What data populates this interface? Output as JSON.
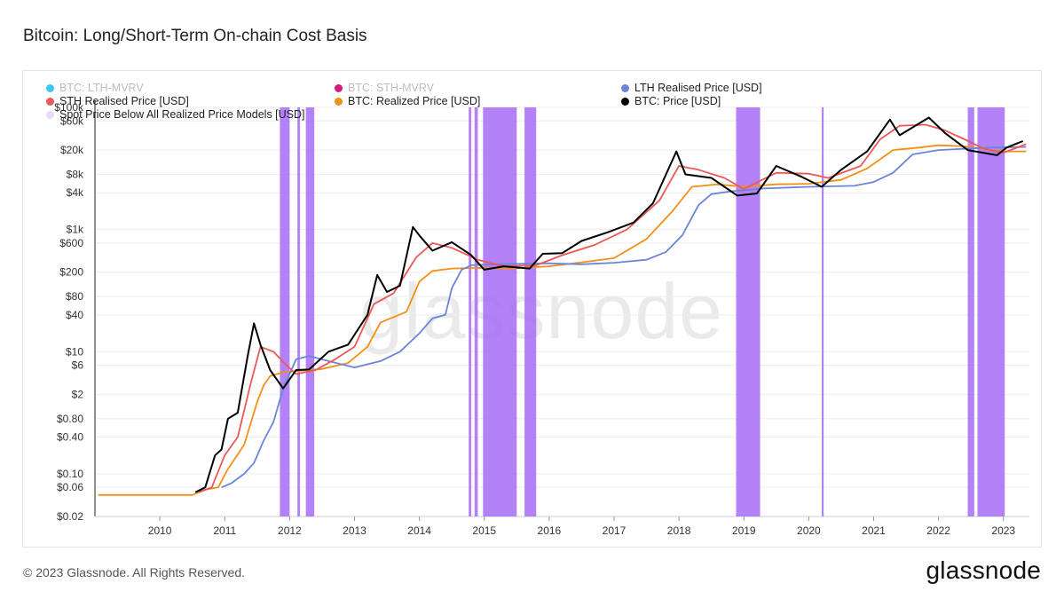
{
  "title": "Bitcoin: Long/Short-Term On-chain Cost Basis",
  "footer": "© 2023 Glassnode. All Rights Reserved.",
  "logo": "glassnode",
  "watermark": "glassnode",
  "legend": [
    {
      "label": "BTC: LTH-MVRV",
      "color": "#3fc6f0",
      "dim": true
    },
    {
      "label": "BTC: STH-MVRV",
      "color": "#d6187f",
      "dim": true
    },
    {
      "label": "LTH Realised Price [USD]",
      "color": "#6b85d8",
      "dim": false
    },
    {
      "label": "STH Realised Price [USD]",
      "color": "#ee5757",
      "dim": false
    },
    {
      "label": "BTC: Realized Price [USD]",
      "color": "#f29015",
      "dim": false
    },
    {
      "label": "BTC: Price [USD]",
      "color": "#000000",
      "dim": false
    },
    {
      "label": "Spot Price Below All Realized Price Models [USD]",
      "color": "#ead9ff",
      "dim": false
    }
  ],
  "chart_data": {
    "type": "line",
    "title": "Bitcoin: Long/Short-Term On-chain Cost Basis",
    "y_scale": "log",
    "ylim": [
      0.02,
      100000
    ],
    "xlim": [
      2009.0,
      2023.4
    ],
    "y_ticks": [
      {
        "v": 100000,
        "label": "$100k"
      },
      {
        "v": 60000,
        "label": "$60k"
      },
      {
        "v": 20000,
        "label": "$20k"
      },
      {
        "v": 8000,
        "label": "$8k"
      },
      {
        "v": 4000,
        "label": "$4k"
      },
      {
        "v": 1000,
        "label": "$1k"
      },
      {
        "v": 600,
        "label": "$600"
      },
      {
        "v": 200,
        "label": "$200"
      },
      {
        "v": 80,
        "label": "$80"
      },
      {
        "v": 40,
        "label": "$40"
      },
      {
        "v": 10,
        "label": "$10"
      },
      {
        "v": 6,
        "label": "$6"
      },
      {
        "v": 2,
        "label": "$2"
      },
      {
        "v": 0.8,
        "label": "$0.80"
      },
      {
        "v": 0.4,
        "label": "$0.40"
      },
      {
        "v": 0.1,
        "label": "$0.10"
      },
      {
        "v": 0.06,
        "label": "$0.06"
      },
      {
        "v": 0.02,
        "label": "$0.02"
      }
    ],
    "x_ticks": [
      {
        "v": 2010,
        "label": "2010"
      },
      {
        "v": 2011,
        "label": "2011"
      },
      {
        "v": 2012,
        "label": "2012"
      },
      {
        "v": 2013,
        "label": "2013"
      },
      {
        "v": 2014,
        "label": "2014"
      },
      {
        "v": 2015,
        "label": "2015"
      },
      {
        "v": 2016,
        "label": "2016"
      },
      {
        "v": 2017,
        "label": "2017"
      },
      {
        "v": 2018,
        "label": "2018"
      },
      {
        "v": 2019,
        "label": "2019"
      },
      {
        "v": 2020,
        "label": "2020"
      },
      {
        "v": 2021,
        "label": "2021"
      },
      {
        "v": 2022,
        "label": "2022"
      },
      {
        "v": 2023,
        "label": "2023"
      }
    ],
    "shaded_periods": [
      [
        2011.85,
        2012.0
      ],
      [
        2012.12,
        2012.16
      ],
      [
        2012.25,
        2012.38
      ],
      [
        2014.76,
        2014.8
      ],
      [
        2014.85,
        2014.9
      ],
      [
        2014.98,
        2015.5
      ],
      [
        2015.62,
        2015.8
      ],
      [
        2018.88,
        2019.25
      ],
      [
        2020.2,
        2020.23
      ],
      [
        2022.45,
        2022.55
      ],
      [
        2022.6,
        2023.02
      ]
    ],
    "series": [
      {
        "name": "BTC: Realized Price [USD]",
        "color": "#f29015",
        "points": [
          [
            2009.05,
            0.045
          ],
          [
            2010.5,
            0.045
          ],
          [
            2010.7,
            0.055
          ],
          [
            2010.9,
            0.06
          ],
          [
            2011.05,
            0.12
          ],
          [
            2011.3,
            0.3
          ],
          [
            2011.5,
            1.5
          ],
          [
            2011.6,
            2.8
          ],
          [
            2011.7,
            4
          ],
          [
            2011.9,
            4.6
          ],
          [
            2012.2,
            4.9
          ],
          [
            2012.5,
            5.2
          ],
          [
            2012.9,
            6.5
          ],
          [
            2013.2,
            12
          ],
          [
            2013.4,
            30
          ],
          [
            2013.8,
            45
          ],
          [
            2014.0,
            140
          ],
          [
            2014.2,
            210
          ],
          [
            2014.5,
            230
          ],
          [
            2014.9,
            235
          ],
          [
            2015.4,
            230
          ],
          [
            2016.0,
            250
          ],
          [
            2016.5,
            290
          ],
          [
            2017.0,
            340
          ],
          [
            2017.5,
            700
          ],
          [
            2017.9,
            2000
          ],
          [
            2018.2,
            5000
          ],
          [
            2018.6,
            5500
          ],
          [
            2019.0,
            5000
          ],
          [
            2019.5,
            5500
          ],
          [
            2020.0,
            5600
          ],
          [
            2020.5,
            6500
          ],
          [
            2020.9,
            10000
          ],
          [
            2021.3,
            20000
          ],
          [
            2021.7,
            22000
          ],
          [
            2022.0,
            24000
          ],
          [
            2022.4,
            23000
          ],
          [
            2022.8,
            20000
          ],
          [
            2023.0,
            19000
          ],
          [
            2023.35,
            19000
          ]
        ]
      },
      {
        "name": "LTH Realised Price [USD]",
        "color": "#6b85d8",
        "points": [
          [
            2010.95,
            0.06
          ],
          [
            2011.1,
            0.07
          ],
          [
            2011.3,
            0.1
          ],
          [
            2011.45,
            0.15
          ],
          [
            2011.6,
            0.35
          ],
          [
            2011.75,
            0.7
          ],
          [
            2011.9,
            2.5
          ],
          [
            2012.1,
            7.5
          ],
          [
            2012.3,
            8.5
          ],
          [
            2012.6,
            7
          ],
          [
            2013.0,
            5.5
          ],
          [
            2013.4,
            7
          ],
          [
            2013.7,
            10
          ],
          [
            2014.0,
            20
          ],
          [
            2014.2,
            35
          ],
          [
            2014.4,
            40
          ],
          [
            2014.5,
            110
          ],
          [
            2014.65,
            220
          ],
          [
            2014.8,
            260
          ],
          [
            2015.2,
            270
          ],
          [
            2016.0,
            280
          ],
          [
            2016.5,
            270
          ],
          [
            2017.0,
            285
          ],
          [
            2017.5,
            320
          ],
          [
            2017.8,
            430
          ],
          [
            2018.05,
            800
          ],
          [
            2018.3,
            2500
          ],
          [
            2018.5,
            3800
          ],
          [
            2018.8,
            4200
          ],
          [
            2019.3,
            4700
          ],
          [
            2020.0,
            5000
          ],
          [
            2020.7,
            5200
          ],
          [
            2021.0,
            6000
          ],
          [
            2021.3,
            8500
          ],
          [
            2021.6,
            17000
          ],
          [
            2022.0,
            20000
          ],
          [
            2022.4,
            21000
          ],
          [
            2022.8,
            22000
          ],
          [
            2023.35,
            22500
          ]
        ]
      },
      {
        "name": "STH Realised Price [USD]",
        "color": "#ee5757",
        "points": [
          [
            2010.6,
            0.05
          ],
          [
            2010.8,
            0.06
          ],
          [
            2011.0,
            0.2
          ],
          [
            2011.2,
            0.4
          ],
          [
            2011.4,
            3
          ],
          [
            2011.55,
            12
          ],
          [
            2011.75,
            10
          ],
          [
            2011.95,
            6
          ],
          [
            2012.1,
            4.3
          ],
          [
            2012.4,
            5
          ],
          [
            2012.7,
            7.5
          ],
          [
            2013.0,
            12
          ],
          [
            2013.3,
            60
          ],
          [
            2013.6,
            90
          ],
          [
            2013.95,
            350
          ],
          [
            2014.2,
            600
          ],
          [
            2014.5,
            500
          ],
          [
            2014.9,
            320
          ],
          [
            2015.3,
            250
          ],
          [
            2015.8,
            260
          ],
          [
            2016.2,
            380
          ],
          [
            2016.7,
            560
          ],
          [
            2017.2,
            1000
          ],
          [
            2017.7,
            3000
          ],
          [
            2018.0,
            11000
          ],
          [
            2018.3,
            9500
          ],
          [
            2018.7,
            7000
          ],
          [
            2019.0,
            4600
          ],
          [
            2019.5,
            8500
          ],
          [
            2020.0,
            8200
          ],
          [
            2020.3,
            7000
          ],
          [
            2020.8,
            11000
          ],
          [
            2021.1,
            30000
          ],
          [
            2021.4,
            50000
          ],
          [
            2021.8,
            52000
          ],
          [
            2022.1,
            42000
          ],
          [
            2022.4,
            30000
          ],
          [
            2022.7,
            21000
          ],
          [
            2023.0,
            18000
          ],
          [
            2023.35,
            25000
          ]
        ]
      },
      {
        "name": "BTC: Price [USD]",
        "color": "#000000",
        "points": [
          [
            2010.55,
            0.05
          ],
          [
            2010.7,
            0.06
          ],
          [
            2010.85,
            0.2
          ],
          [
            2010.95,
            0.25
          ],
          [
            2011.05,
            0.8
          ],
          [
            2011.2,
            1
          ],
          [
            2011.35,
            8
          ],
          [
            2011.45,
            29
          ],
          [
            2011.55,
            13
          ],
          [
            2011.7,
            5
          ],
          [
            2011.9,
            2.5
          ],
          [
            2012.1,
            5
          ],
          [
            2012.3,
            5.1
          ],
          [
            2012.6,
            10
          ],
          [
            2012.9,
            13
          ],
          [
            2013.2,
            40
          ],
          [
            2013.35,
            180
          ],
          [
            2013.5,
            95
          ],
          [
            2013.7,
            120
          ],
          [
            2013.9,
            1100
          ],
          [
            2014.0,
            800
          ],
          [
            2014.2,
            450
          ],
          [
            2014.5,
            620
          ],
          [
            2014.8,
            380
          ],
          [
            2015.0,
            220
          ],
          [
            2015.3,
            250
          ],
          [
            2015.7,
            230
          ],
          [
            2015.9,
            400
          ],
          [
            2016.2,
            410
          ],
          [
            2016.5,
            650
          ],
          [
            2016.9,
            900
          ],
          [
            2017.3,
            1300
          ],
          [
            2017.6,
            2700
          ],
          [
            2017.96,
            19000
          ],
          [
            2018.1,
            8000
          ],
          [
            2018.5,
            7000
          ],
          [
            2018.9,
            3600
          ],
          [
            2019.2,
            3900
          ],
          [
            2019.5,
            11000
          ],
          [
            2019.9,
            7200
          ],
          [
            2020.2,
            5000
          ],
          [
            2020.5,
            9500
          ],
          [
            2020.9,
            19000
          ],
          [
            2021.25,
            63000
          ],
          [
            2021.4,
            35000
          ],
          [
            2021.85,
            68000
          ],
          [
            2022.1,
            38000
          ],
          [
            2022.45,
            20000
          ],
          [
            2022.9,
            16500
          ],
          [
            2023.05,
            22000
          ],
          [
            2023.3,
            28000
          ]
        ]
      }
    ]
  }
}
